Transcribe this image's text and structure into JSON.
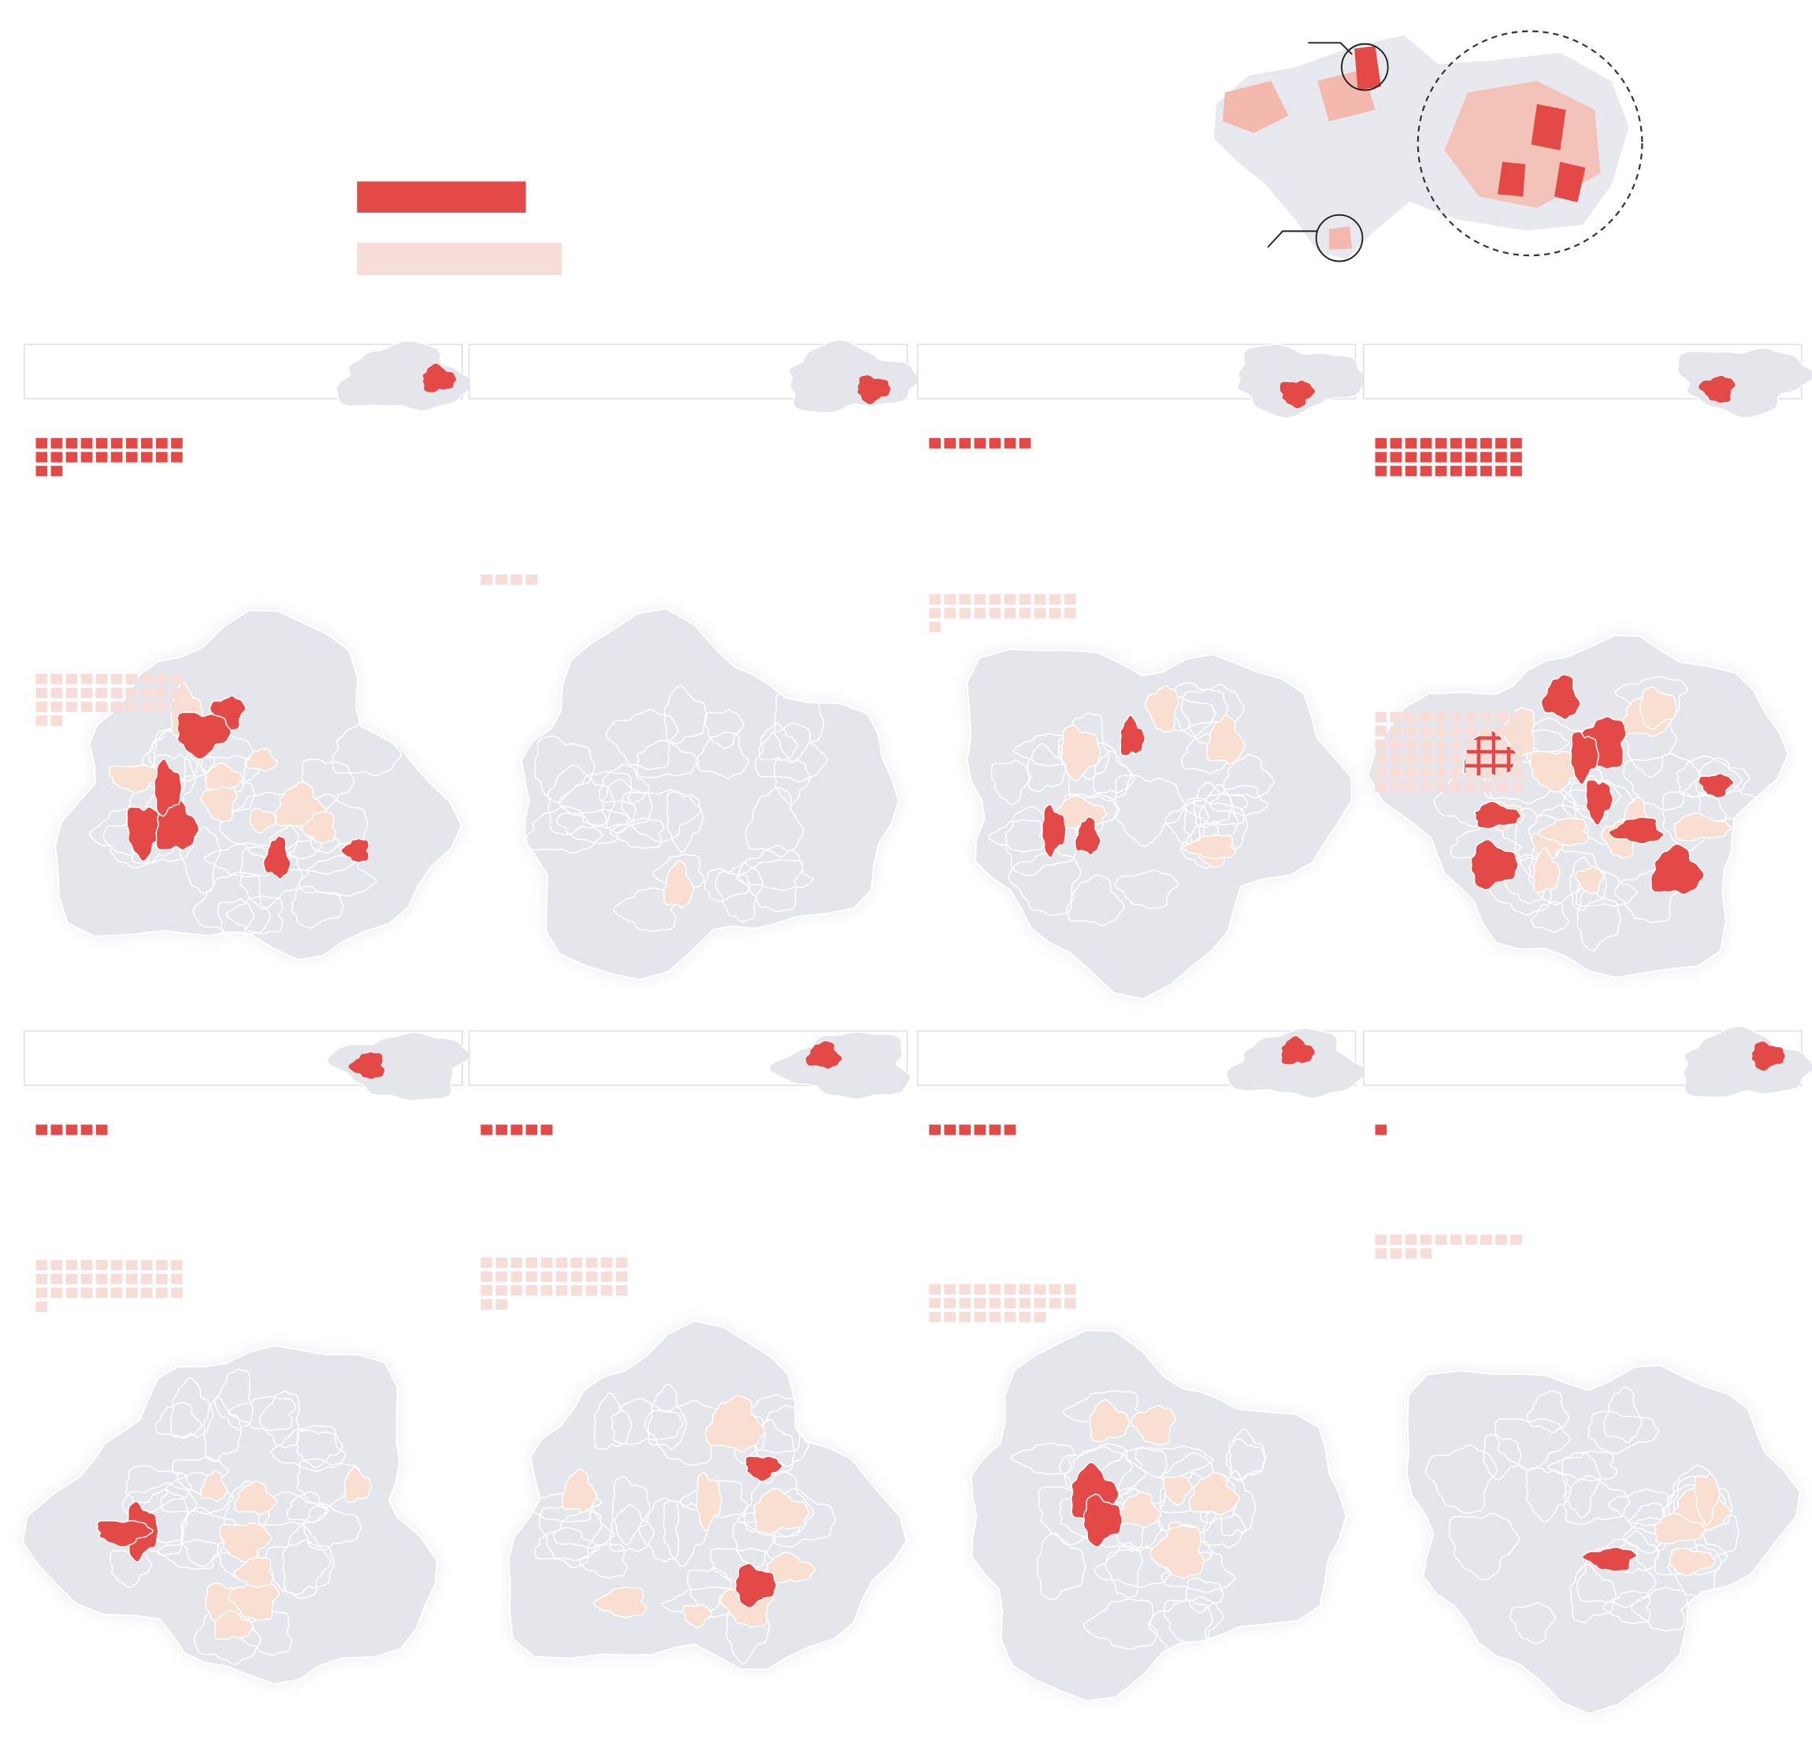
{
  "panels": [
    {
      "red": 22,
      "pink": 32
    },
    {
      "red": 0,
      "pink": 4
    },
    {
      "red": 7,
      "pink": 21
    },
    {
      "red": 30,
      "pink": 60
    },
    {
      "red": 5,
      "pink": 31
    },
    {
      "red": 5,
      "pink": 32
    },
    {
      "red": 6,
      "pink": 28
    },
    {
      "red": 1,
      "pink": 14
    }
  ]
}
